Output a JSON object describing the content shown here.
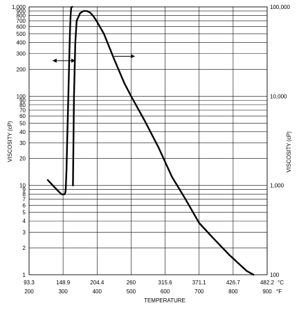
{
  "chart_data": {
    "type": "line",
    "xlabel": "TEMPERATURE",
    "ylabel_left": "VISCOSITY (cP)",
    "ylabel_right": "VISCOSITY (cP)",
    "y_scale": "log",
    "ylim_left": [
      1,
      1000
    ],
    "ylim_right": [
      100,
      100000
    ],
    "xlim_f": [
      200,
      900
    ],
    "x_ticks_c": [
      "93.3",
      "148.9",
      "204.4",
      "260",
      "315.6",
      "371.1",
      "426.7",
      "482.2"
    ],
    "x_ticks_f": [
      "200",
      "300",
      "400",
      "500",
      "600",
      "700",
      "800",
      "900"
    ],
    "x_unit_c": "°C",
    "x_unit_f": "°F",
    "y_ticks_left": [
      {
        "value": 1,
        "label": "1"
      },
      {
        "value": 2,
        "label": "2"
      },
      {
        "value": 3,
        "label": "3"
      },
      {
        "value": 4,
        "label": "4"
      },
      {
        "value": 5,
        "label": "5"
      },
      {
        "value": 6,
        "label": "6"
      },
      {
        "value": 7,
        "label": "7"
      },
      {
        "value": 8,
        "label": "8"
      },
      {
        "value": 9,
        "label": "9"
      },
      {
        "value": 10,
        "label": "10"
      },
      {
        "value": 20,
        "label": "20"
      },
      {
        "value": 30,
        "label": "30"
      },
      {
        "value": 40,
        "label": "40"
      },
      {
        "value": 50,
        "label": "50"
      },
      {
        "value": 60,
        "label": "60"
      },
      {
        "value": 70,
        "label": "70"
      },
      {
        "value": 80,
        "label": "80"
      },
      {
        "value": 90,
        "label": "90"
      },
      {
        "value": 100,
        "label": "100"
      },
      {
        "value": 200,
        "label": "200"
      },
      {
        "value": 300,
        "label": "300"
      },
      {
        "value": 400,
        "label": "400"
      },
      {
        "value": 500,
        "label": "500"
      },
      {
        "value": 600,
        "label": "600"
      },
      {
        "value": 700,
        "label": "700"
      },
      {
        "value": 800,
        "label": "800"
      },
      {
        "value": 900,
        "label": "900"
      },
      {
        "value": 1000,
        "label": "1,000"
      }
    ],
    "y_ticks_right": [
      {
        "value": 100,
        "label": "100"
      },
      {
        "value": 1000,
        "label": "1,000"
      },
      {
        "value": 10000,
        "label": "10,000"
      },
      {
        "value": 100000,
        "label": "100,000"
      }
    ],
    "series": [
      {
        "axis": "left",
        "x": [
          255,
          270,
          285,
          295,
          300,
          305,
          307,
          308,
          310,
          312,
          314,
          316,
          318,
          320,
          322,
          324,
          326,
          327
        ],
        "y": [
          11.5,
          10,
          8.7,
          8.0,
          7.9,
          8.0,
          8.5,
          9.5,
          15,
          30,
          60,
          120,
          250,
          500,
          800,
          980,
          1000,
          1000
        ]
      },
      {
        "axis": "right",
        "x": [
          329,
          332,
          336,
          340,
          350,
          360,
          370,
          380,
          390,
          400,
          420,
          450,
          480,
          500,
          540,
          580,
          620,
          660,
          700,
          740,
          790,
          840,
          860
        ],
        "y": [
          1000,
          10000,
          40000,
          70000,
          85000,
          90000,
          90000,
          86000,
          78000,
          68000,
          50000,
          26000,
          14000,
          10000,
          5300,
          2700,
          1250,
          700,
          380,
          260,
          165,
          110,
          100
        ]
      }
    ],
    "arrows": [
      {
        "direction": "both",
        "x": [
          270,
          335
        ],
        "y": 250
      },
      {
        "direction": "right",
        "x": [
          450,
          510
        ],
        "y": 280
      }
    ],
    "grid": true
  }
}
